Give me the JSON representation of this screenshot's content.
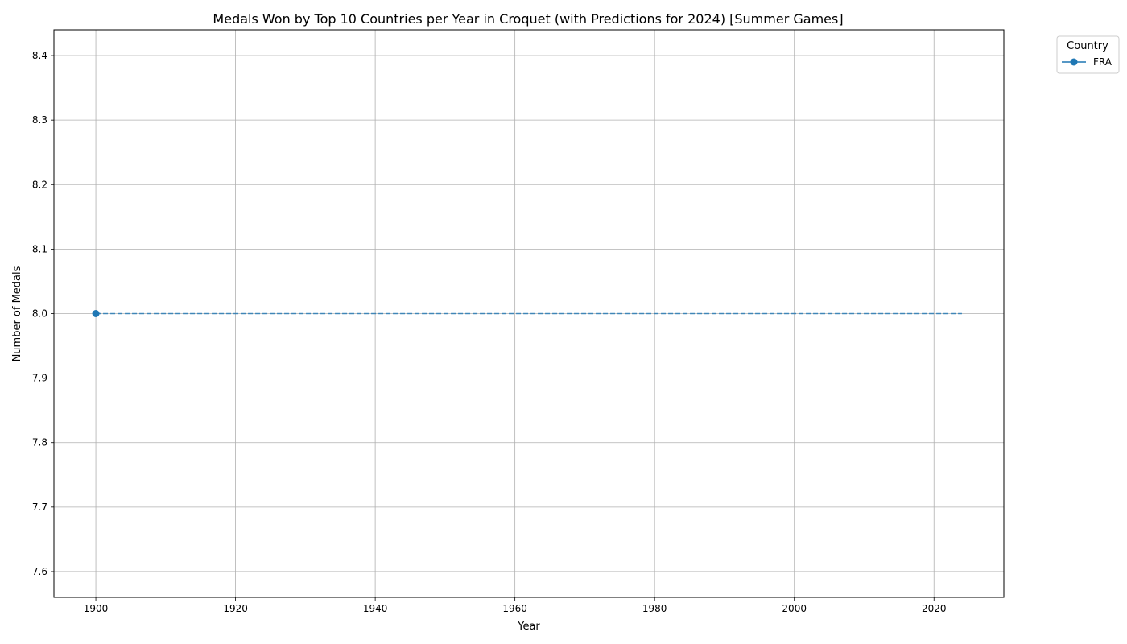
{
  "chart_data": {
    "type": "line",
    "title": "Medals Won by Top 10 Countries per Year in Croquet (with Predictions for 2024) [Summer Games]",
    "xlabel": "Year",
    "ylabel": "Number of Medals",
    "xlim": [
      1894,
      2030
    ],
    "ylim": [
      7.56,
      8.44
    ],
    "xticks": [
      1900,
      1920,
      1940,
      1960,
      1980,
      2000,
      2020
    ],
    "yticks": [
      7.6,
      7.7,
      7.8,
      7.9,
      8.0,
      8.1,
      8.2,
      8.3,
      8.4
    ],
    "grid": true,
    "legend": {
      "title": "Country",
      "placement": "outside-top-right"
    },
    "series": [
      {
        "name": "FRA",
        "color": "#1f77b4",
        "marker": "circle",
        "x": [
          1900
        ],
        "y": [
          8
        ]
      }
    ],
    "prediction": {
      "series": "FRA",
      "style": "dashed",
      "x": [
        1900,
        2024
      ],
      "y": [
        8,
        8
      ]
    }
  }
}
